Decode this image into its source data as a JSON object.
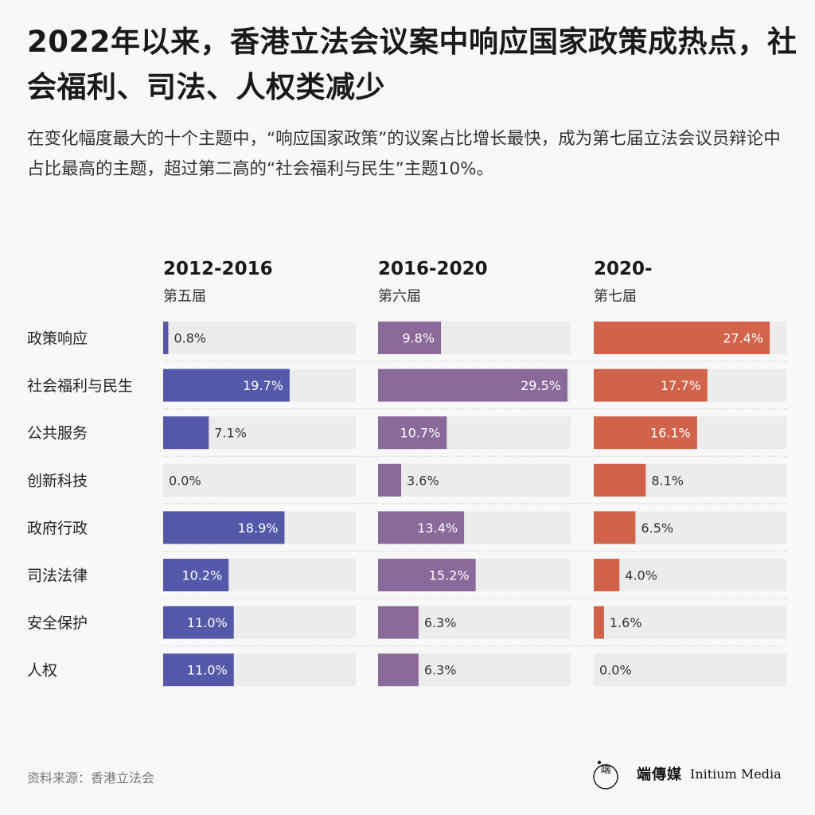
{
  "title": "2022年以来，香港立法会议案中响应国家政策成热点，社会福利、司法、人权类减少",
  "subtitle": "在变化幅度最大的十个主题中，“响应国家政策”的议案占比增长最快，成为第七届立法会议员辩论中占比最高的主题，超过第二高的“社会福利与民生”主题10%。",
  "source": "资料来源：香港立法会",
  "brand": {
    "cn": "端傳媒",
    "en": "Initium Media"
  },
  "chart_data": {
    "type": "bar",
    "orientation": "horizontal",
    "categories": [
      "政策响应",
      "社会福利与民生",
      "公共服务",
      "创新科技",
      "政府行政",
      "司法法律",
      "安全保护",
      "人权"
    ],
    "xlim": [
      0,
      30
    ],
    "value_suffix": "%",
    "colors": {
      "background_bar": "#ececec",
      "separator": "#d4d4d4"
    },
    "series": [
      {
        "name": "2012-2016",
        "subname": "第五届",
        "color": "#5558a9",
        "values": [
          0.8,
          19.7,
          7.1,
          0.0,
          18.9,
          10.2,
          11.0,
          11.0
        ]
      },
      {
        "name": "2016-2020",
        "subname": "第六届",
        "color": "#8a6a9b",
        "values": [
          9.8,
          29.5,
          10.7,
          3.6,
          13.4,
          15.2,
          6.3,
          6.3
        ]
      },
      {
        "name": "2020-",
        "subname": "第七届",
        "color": "#d0634a",
        "values": [
          27.4,
          17.7,
          16.1,
          8.1,
          6.5,
          4.0,
          1.6,
          0.0
        ]
      }
    ]
  }
}
